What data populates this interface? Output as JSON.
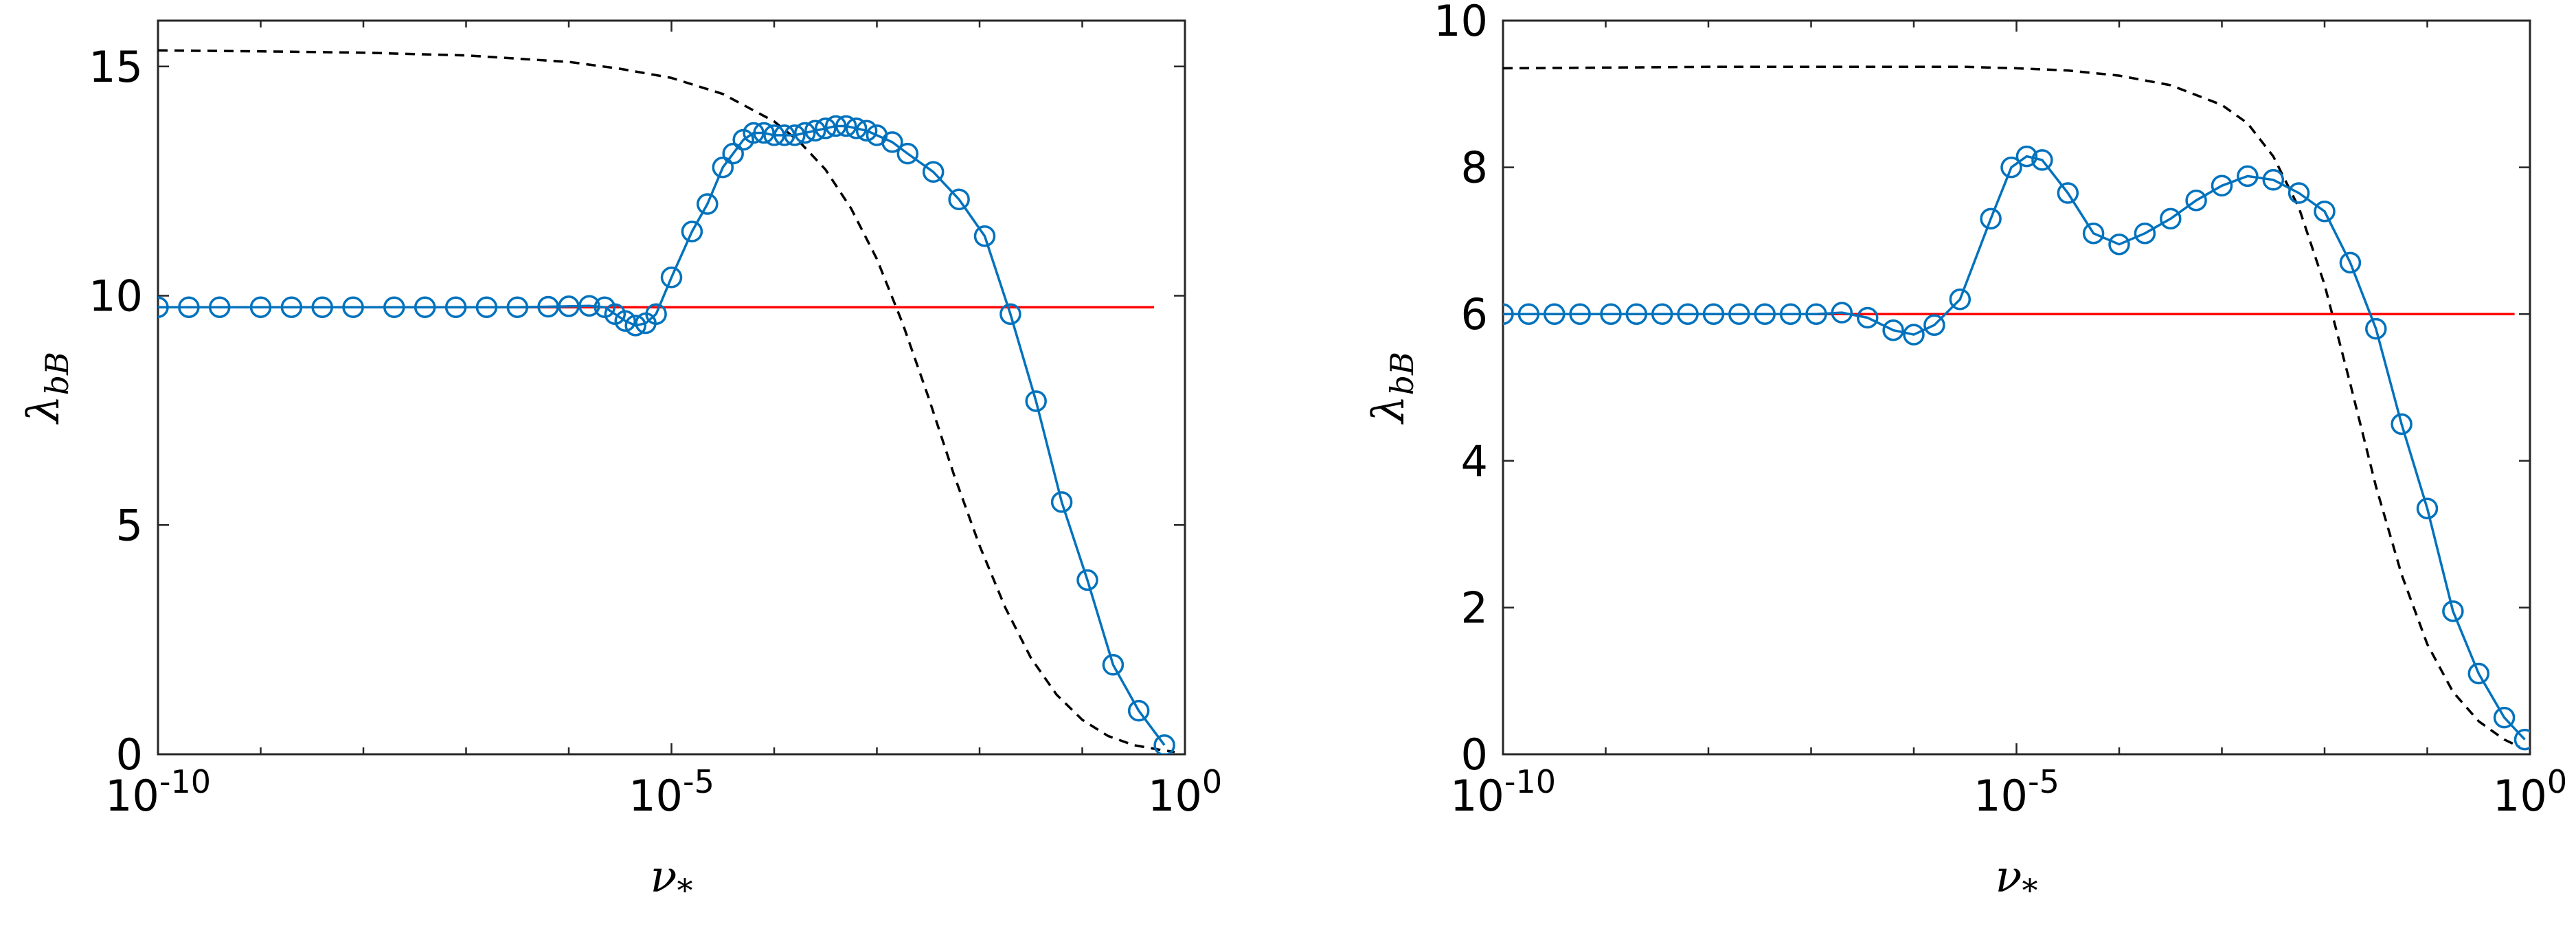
{
  "chart_data": [
    {
      "type": "line",
      "xscale": "log",
      "xlim": [
        1e-10,
        1
      ],
      "ylim": [
        0,
        16
      ],
      "grid": false,
      "xlabel": "ν*",
      "ylabel": "λbB",
      "xlabel_main": "ν",
      "xlabel_sub": "*",
      "ylabel_main": "λ",
      "ylabel_sub": "bB",
      "x_ticks": [
        {
          "value": 1e-10,
          "base": "10",
          "exp": "-10"
        },
        {
          "value": 1e-05,
          "base": "10",
          "exp": "-5"
        },
        {
          "value": 1,
          "base": "10",
          "exp": "0"
        }
      ],
      "y_ticks": [
        {
          "value": 0,
          "label": "0"
        },
        {
          "value": 5,
          "label": "5"
        },
        {
          "value": 10,
          "label": "10"
        },
        {
          "value": 15,
          "label": "15"
        }
      ],
      "series": [
        {
          "style": "dashed",
          "color": "#000000",
          "marker": "none",
          "log10_x": [
            -10,
            -9,
            -8,
            -7,
            -6,
            -5.5,
            -5,
            -4.5,
            -4,
            -3.75,
            -3.5,
            -3.25,
            -3,
            -2.75,
            -2.5,
            -2.25,
            -2,
            -1.75,
            -1.5,
            -1.25,
            -1,
            -0.75,
            -0.5,
            -0.25,
            -0.1
          ],
          "y": [
            15.35,
            15.33,
            15.3,
            15.24,
            15.1,
            14.95,
            14.75,
            14.4,
            13.8,
            13.35,
            12.75,
            11.9,
            10.8,
            9.4,
            7.8,
            6.1,
            4.55,
            3.2,
            2.1,
            1.3,
            0.75,
            0.4,
            0.2,
            0.1,
            0.05
          ]
        },
        {
          "style": "solid",
          "color": "#ff0000",
          "marker": "none",
          "log10_x": [
            -10,
            -0.3
          ],
          "y": [
            9.75,
            9.75
          ]
        },
        {
          "style": "solid",
          "color": "#0072bd",
          "marker": "circle",
          "log10_x": [
            -10,
            -9.7,
            -9.4,
            -9.0,
            -8.7,
            -8.4,
            -8.1,
            -7.7,
            -7.4,
            -7.1,
            -6.8,
            -6.5,
            -6.2,
            -6.0,
            -5.8,
            -5.65,
            -5.55,
            -5.45,
            -5.35,
            -5.25,
            -5.15,
            -5.0,
            -4.8,
            -4.65,
            -4.5,
            -4.4,
            -4.3,
            -4.2,
            -4.1,
            -4.0,
            -3.9,
            -3.8,
            -3.7,
            -3.6,
            -3.5,
            -3.4,
            -3.3,
            -3.2,
            -3.1,
            -3.0,
            -2.85,
            -2.7,
            -2.45,
            -2.2,
            -1.95,
            -1.7,
            -1.45,
            -1.2,
            -0.95,
            -0.7,
            -0.45,
            -0.2
          ],
          "y": [
            9.75,
            9.75,
            9.75,
            9.75,
            9.75,
            9.75,
            9.75,
            9.75,
            9.75,
            9.75,
            9.75,
            9.75,
            9.76,
            9.77,
            9.78,
            9.75,
            9.6,
            9.45,
            9.35,
            9.4,
            9.6,
            10.4,
            11.4,
            12.0,
            12.8,
            13.1,
            13.4,
            13.55,
            13.55,
            13.5,
            13.5,
            13.5,
            13.55,
            13.6,
            13.65,
            13.7,
            13.7,
            13.65,
            13.6,
            13.5,
            13.35,
            13.1,
            12.7,
            12.1,
            11.3,
            9.6,
            7.7,
            5.5,
            3.8,
            1.95,
            0.95,
            0.2
          ]
        }
      ]
    },
    {
      "type": "line",
      "xscale": "log",
      "xlim": [
        1e-10,
        1
      ],
      "ylim": [
        0,
        10
      ],
      "grid": false,
      "xlabel": "ν*",
      "ylabel": "λbB",
      "xlabel_main": "ν",
      "xlabel_sub": "*",
      "ylabel_main": "λ",
      "ylabel_sub": "bB",
      "x_ticks": [
        {
          "value": 1e-10,
          "base": "10",
          "exp": "-10"
        },
        {
          "value": 1e-05,
          "base": "10",
          "exp": "-5"
        },
        {
          "value": 1,
          "base": "10",
          "exp": "0"
        }
      ],
      "y_ticks": [
        {
          "value": 0,
          "label": "0"
        },
        {
          "value": 2,
          "label": "2"
        },
        {
          "value": 4,
          "label": "4"
        },
        {
          "value": 6,
          "label": "6"
        },
        {
          "value": 8,
          "label": "8"
        },
        {
          "value": 10,
          "label": "10"
        }
      ],
      "series": [
        {
          "style": "dashed",
          "color": "#000000",
          "marker": "none",
          "log10_x": [
            -10,
            -9,
            -8,
            -7,
            -6,
            -5.5,
            -5,
            -4.5,
            -4,
            -3.5,
            -3,
            -2.75,
            -2.5,
            -2.25,
            -2,
            -1.75,
            -1.5,
            -1.25,
            -1,
            -0.75,
            -0.5,
            -0.25,
            -0.1
          ],
          "y": [
            9.35,
            9.36,
            9.37,
            9.37,
            9.37,
            9.37,
            9.35,
            9.32,
            9.25,
            9.12,
            8.85,
            8.6,
            8.15,
            7.45,
            6.4,
            5.05,
            3.65,
            2.45,
            1.5,
            0.85,
            0.45,
            0.2,
            0.1
          ]
        },
        {
          "style": "solid",
          "color": "#ff0000",
          "marker": "none",
          "log10_x": [
            -10,
            -0.15
          ],
          "y": [
            6.0,
            6.0
          ]
        },
        {
          "style": "solid",
          "color": "#0072bd",
          "marker": "circle",
          "log10_x": [
            -10,
            -9.75,
            -9.5,
            -9.25,
            -8.95,
            -8.7,
            -8.45,
            -8.2,
            -7.95,
            -7.7,
            -7.45,
            -7.2,
            -6.95,
            -6.7,
            -6.45,
            -6.2,
            -6.0,
            -5.8,
            -5.55,
            -5.25,
            -5.05,
            -4.9,
            -4.75,
            -4.5,
            -4.25,
            -4.0,
            -3.75,
            -3.5,
            -3.25,
            -3.0,
            -2.75,
            -2.5,
            -2.25,
            -2.0,
            -1.75,
            -1.5,
            -1.25,
            -1.0,
            -0.75,
            -0.5,
            -0.25,
            -0.05
          ],
          "y": [
            6.0,
            6.0,
            6.0,
            6.0,
            6.0,
            6.0,
            6.0,
            6.0,
            6.0,
            6.0,
            6.0,
            6.0,
            6.0,
            6.02,
            5.95,
            5.78,
            5.72,
            5.85,
            6.2,
            7.3,
            8.0,
            8.15,
            8.1,
            7.65,
            7.1,
            6.95,
            7.1,
            7.3,
            7.55,
            7.75,
            7.88,
            7.83,
            7.65,
            7.4,
            6.7,
            5.8,
            4.5,
            3.35,
            1.95,
            1.1,
            0.5,
            0.2
          ]
        }
      ]
    }
  ]
}
